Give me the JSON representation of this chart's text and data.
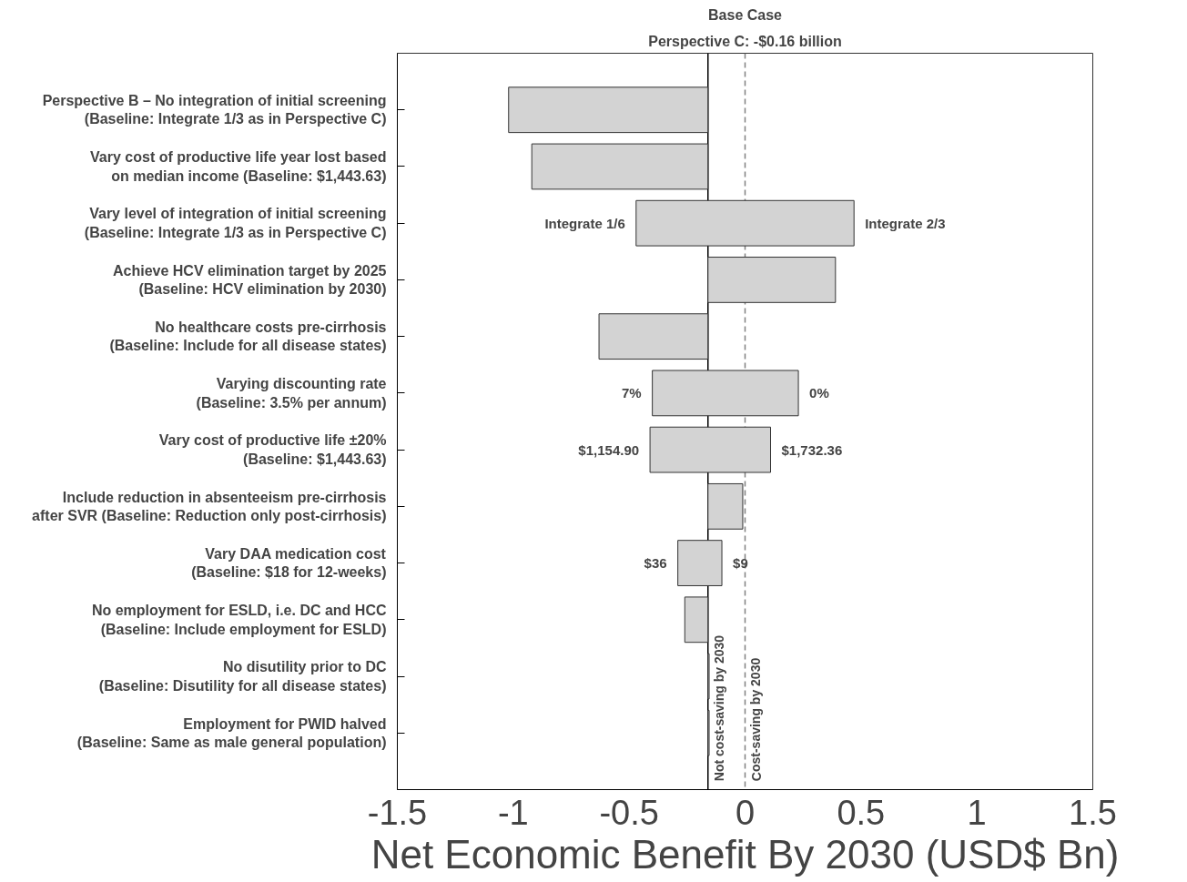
{
  "chart_data": {
    "type": "bar",
    "orientation": "horizontal",
    "title": "Base Case",
    "subtitle": "Perspective C: -$0.16 billion",
    "xlabel": "Net Economic Benefit By 2030 (USD$ Bn)",
    "categories": [
      "Perspective B – No integration of initial screening\n(Baseline: Integrate 1/3 as in Perspective C)",
      "Vary cost of productive life year lost based\non median income (Baseline: $1,443.63)",
      "Vary level of integration of initial screening\n(Baseline: Integrate 1/3 as in Perspective C)",
      "Achieve HCV elimination target by 2025\n(Baseline: HCV elimination by 2030)",
      "No healthcare costs pre-cirrhosis\n(Baseline: Include for all disease states)",
      "Varying discounting rate\n(Baseline: 3.5% per annum)",
      "Vary cost of productive life ±20%\n(Baseline: $1,443.63)",
      "Include reduction in absenteeism pre-cirrhosis\nafter SVR (Baseline: Reduction only post-cirrhosis)",
      "Vary DAA medication cost\n(Baseline: $18 for 12-weeks)",
      "No employment for ESLD, i.e. DC and HCC\n(Baseline: Include employment for ESLD)",
      "No disutility prior to DC\n(Baseline: Disutility for all disease states)",
      "Employment for PWID halved\n(Baseline: Same as male general population)"
    ],
    "base": [
      -1.02,
      -0.92,
      -0.47,
      -0.16,
      -0.63,
      -0.4,
      -0.41,
      -0.16,
      -0.29,
      -0.26,
      -0.16,
      -0.16
    ],
    "values": [
      0.86,
      0.76,
      0.94,
      0.55,
      0.47,
      0.63,
      0.52,
      0.15,
      0.19,
      0.1,
      0.005,
      0.005
    ],
    "color": "#d3d3d3",
    "xlim": [
      -1.5,
      1.5
    ],
    "xticks": [
      -1.5,
      -1,
      -0.5,
      0,
      0.5,
      1,
      1.5
    ],
    "ref_lines": [
      {
        "axis": "x",
        "value": -0.16,
        "label": "Not cost-saving by 2030",
        "color": "#000000",
        "line_style": "solid"
      },
      {
        "axis": "x",
        "value": 0,
        "label": "Cost-saving by 2030",
        "color": "#808080",
        "line_style": "dashed"
      }
    ],
    "annotations": [
      {
        "text": "Integrate 1/6",
        "x": -0.47,
        "y": "Vary level of integration of initial screening\n(Baseline: Integrate 1/3 as in Perspective C)"
      },
      {
        "text": "Integrate 2/3",
        "x": 0.47,
        "y": "Vary level of integration of initial screening\n(Baseline: Integrate 1/3 as in Perspective C)"
      },
      {
        "text": "7%",
        "x": -0.4,
        "y": "Varying discounting rate\n(Baseline: 3.5% per annum)"
      },
      {
        "text": "0%",
        "x": 0.23,
        "y": "Varying discounting rate\n(Baseline: 3.5% per annum)"
      },
      {
        "text": "$1,154.90",
        "x": -0.41,
        "y": "Vary cost of productive life ±20%\n(Baseline: $1,443.63)"
      },
      {
        "text": "$1,732.36",
        "x": 0.11,
        "y": "Vary cost of productive life ±20%\n(Baseline: $1,443.63)"
      },
      {
        "text": "$36",
        "x": -0.29,
        "y": "Vary DAA medication cost\n(Baseline: $18 for 12-weeks)"
      },
      {
        "text": "$9",
        "x": -0.1,
        "y": "Vary DAA medication cost\n(Baseline: $18 for 12-weeks)"
      }
    ],
    "grid": false
  }
}
